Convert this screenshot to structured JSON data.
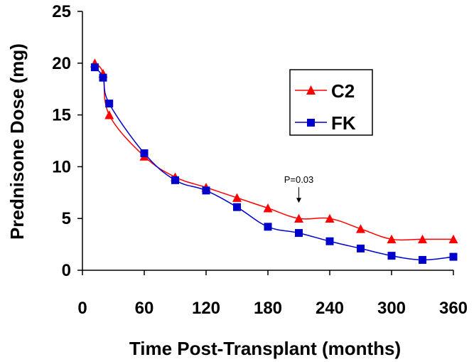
{
  "chart_data": {
    "type": "line",
    "title": "",
    "xlabel": "Time Post-Transplant (months)",
    "ylabel": "Prednisone Dose (mg)",
    "xlim": [
      0,
      360
    ],
    "ylim": [
      0,
      25
    ],
    "xticks": [
      0,
      60,
      120,
      180,
      240,
      300,
      360
    ],
    "yticks": [
      0,
      5,
      10,
      15,
      20,
      25
    ],
    "grid": false,
    "legend_position": "right",
    "series": [
      {
        "name": "C2",
        "color": "#ff0000",
        "marker": "triangle",
        "x": [
          12,
          20,
          26,
          60,
          90,
          120,
          150,
          180,
          210,
          240,
          270,
          300,
          330,
          360
        ],
        "y": [
          20,
          19,
          15,
          11,
          9,
          8,
          7,
          6,
          5,
          5,
          4,
          3,
          3,
          3
        ]
      },
      {
        "name": "FK",
        "color": "#0000cc",
        "marker": "square",
        "x": [
          12,
          20,
          26,
          60,
          90,
          120,
          150,
          180,
          210,
          240,
          270,
          300,
          330,
          360
        ],
        "y": [
          19.6,
          18.6,
          16.1,
          11.3,
          8.7,
          7.7,
          6.1,
          4.2,
          3.6,
          2.8,
          2.1,
          1.4,
          1.0,
          1.3
        ]
      }
    ],
    "annotations": [
      {
        "text": "P=0.03",
        "x": 210,
        "y": 5,
        "arrow": "down"
      }
    ]
  }
}
